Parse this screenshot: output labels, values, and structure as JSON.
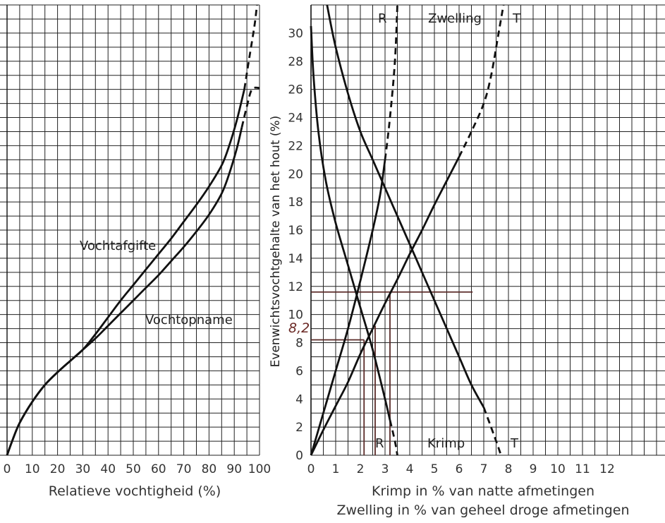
{
  "chart_data": [
    {
      "type": "line",
      "title": "",
      "xlabel": "Relatieve vochtigheid (%)",
      "ylabel": "",
      "xlim": [
        0,
        100
      ],
      "ylim": [
        0,
        32
      ],
      "xticks": [
        "0",
        "10",
        "20",
        "30",
        "40",
        "50",
        "60",
        "70",
        "80",
        "90",
        "100"
      ],
      "grid": true,
      "series": [
        {
          "name": "Vochtafgifte",
          "points": [
            [
              0,
              0
            ],
            [
              2,
              1
            ],
            [
              5,
              2.3
            ],
            [
              10,
              3.8
            ],
            [
              15,
              5
            ],
            [
              20,
              5.9
            ],
            [
              25,
              6.7
            ],
            [
              30,
              7.5
            ],
            [
              35,
              8.6
            ],
            [
              40,
              9.8
            ],
            [
              45,
              11
            ],
            [
              50,
              12.1
            ],
            [
              55,
              13.2
            ],
            [
              60,
              14.3
            ],
            [
              65,
              15.4
            ],
            [
              70,
              16.6
            ],
            [
              75,
              17.8
            ],
            [
              80,
              19.1
            ],
            [
              85,
              20.6
            ],
            [
              88,
              22
            ],
            [
              91,
              23.8
            ],
            [
              94,
              26
            ],
            [
              96,
              28.3
            ],
            [
              98,
              30.5
            ],
            [
              99,
              32
            ]
          ],
          "dashed_from_x": 94
        },
        {
          "name": "Vochtopname",
          "points": [
            [
              0,
              0
            ],
            [
              2,
              1
            ],
            [
              5,
              2.3
            ],
            [
              10,
              3.8
            ],
            [
              15,
              5
            ],
            [
              20,
              5.9
            ],
            [
              25,
              6.7
            ],
            [
              30,
              7.5
            ],
            [
              35,
              8.3
            ],
            [
              40,
              9.2
            ],
            [
              45,
              10.1
            ],
            [
              50,
              11
            ],
            [
              55,
              11.9
            ],
            [
              60,
              12.8
            ],
            [
              65,
              13.8
            ],
            [
              70,
              14.8
            ],
            [
              75,
              15.9
            ],
            [
              80,
              17.1
            ],
            [
              85,
              18.6
            ],
            [
              88,
              20
            ],
            [
              91,
              21.8
            ],
            [
              93,
              23.3
            ],
            [
              95,
              24.8
            ],
            [
              97,
              26
            ],
            [
              100,
              26.1
            ]
          ],
          "dashed_from_x": 93
        }
      ]
    },
    {
      "type": "line",
      "title": "",
      "xlabel": "Krimp in % van natte afmetingen",
      "xlabel2": "Zwelling in % van geheel droge afmetingen",
      "ylabel": "Evenwichtsvochtgehalte van het hout (%)",
      "xlim": [
        0,
        12
      ],
      "ylim": [
        0,
        32
      ],
      "xticks": [
        "0",
        "1",
        "2",
        "3",
        "4",
        "5",
        "6",
        "7",
        "8",
        "9",
        "10",
        "11",
        "12"
      ],
      "yticks": [
        "0",
        "2",
        "4",
        "6",
        "8",
        "10",
        "12",
        "14",
        "16",
        "18",
        "20",
        "22",
        "24",
        "26",
        "28",
        "30"
      ],
      "grid": true,
      "series": [
        {
          "name": "R",
          "group": "Krimp",
          "points": [
            [
              0,
              30.5
            ],
            [
              0.1,
              27
            ],
            [
              0.3,
              23
            ],
            [
              0.6,
              19.5
            ],
            [
              1,
              16.5
            ],
            [
              1.5,
              13.5
            ],
            [
              2,
              10.5
            ],
            [
              2.5,
              7.5
            ],
            [
              3,
              4
            ],
            [
              3.2,
              2.5
            ],
            [
              3.4,
              1
            ],
            [
              3.5,
              0
            ]
          ],
          "dashed_from_y": 3
        },
        {
          "name": "T",
          "group": "Krimp",
          "points": [
            [
              0.65,
              32
            ],
            [
              1,
              29
            ],
            [
              1.5,
              25.7
            ],
            [
              2,
              23
            ],
            [
              2.5,
              21
            ],
            [
              3,
              19
            ],
            [
              3.5,
              17
            ],
            [
              4,
              15
            ],
            [
              4.5,
              13
            ],
            [
              5,
              11
            ],
            [
              5.5,
              9
            ],
            [
              6,
              7
            ],
            [
              6.5,
              5
            ],
            [
              7,
              3.4
            ],
            [
              7.4,
              1.5
            ],
            [
              7.7,
              0
            ]
          ],
          "dashed_from_y": 4
        },
        {
          "name": "R",
          "group": "Zwelling",
          "points": [
            [
              0,
              0
            ],
            [
              0.5,
              3
            ],
            [
              1,
              6
            ],
            [
              1.5,
              9
            ],
            [
              2,
              12.4
            ],
            [
              2.5,
              16
            ],
            [
              2.8,
              18.5
            ],
            [
              3,
              21
            ],
            [
              3.2,
              24
            ],
            [
              3.4,
              28
            ],
            [
              3.5,
              32
            ]
          ],
          "dashed_from_y": 21
        },
        {
          "name": "T",
          "group": "Zwelling",
          "points": [
            [
              0,
              0
            ],
            [
              0.5,
              1.8
            ],
            [
              1,
              3.5
            ],
            [
              1.5,
              5.2
            ],
            [
              2,
              7.2
            ],
            [
              2.5,
              9
            ],
            [
              3,
              10.8
            ],
            [
              3.5,
              12.5
            ],
            [
              4,
              14.3
            ],
            [
              4.5,
              16
            ],
            [
              5,
              17.8
            ],
            [
              5.5,
              19.5
            ],
            [
              6,
              21.2
            ],
            [
              6.5,
              23
            ],
            [
              7,
              25
            ],
            [
              7.3,
              27
            ],
            [
              7.6,
              30
            ],
            [
              7.8,
              32
            ]
          ],
          "dashed_from_y": 20.5
        }
      ],
      "annotations": [
        "8,2"
      ]
    }
  ],
  "labels": {
    "left_curve_upper": "Vochtafgifte",
    "left_curve_lower": "Vochtopname",
    "right_zwelling": "Zwelling",
    "right_krimp": "Krimp",
    "r_top": "R",
    "t_top": "T",
    "r_bottom": "R",
    "t_bottom": "T",
    "annotation_value": "8,2"
  }
}
